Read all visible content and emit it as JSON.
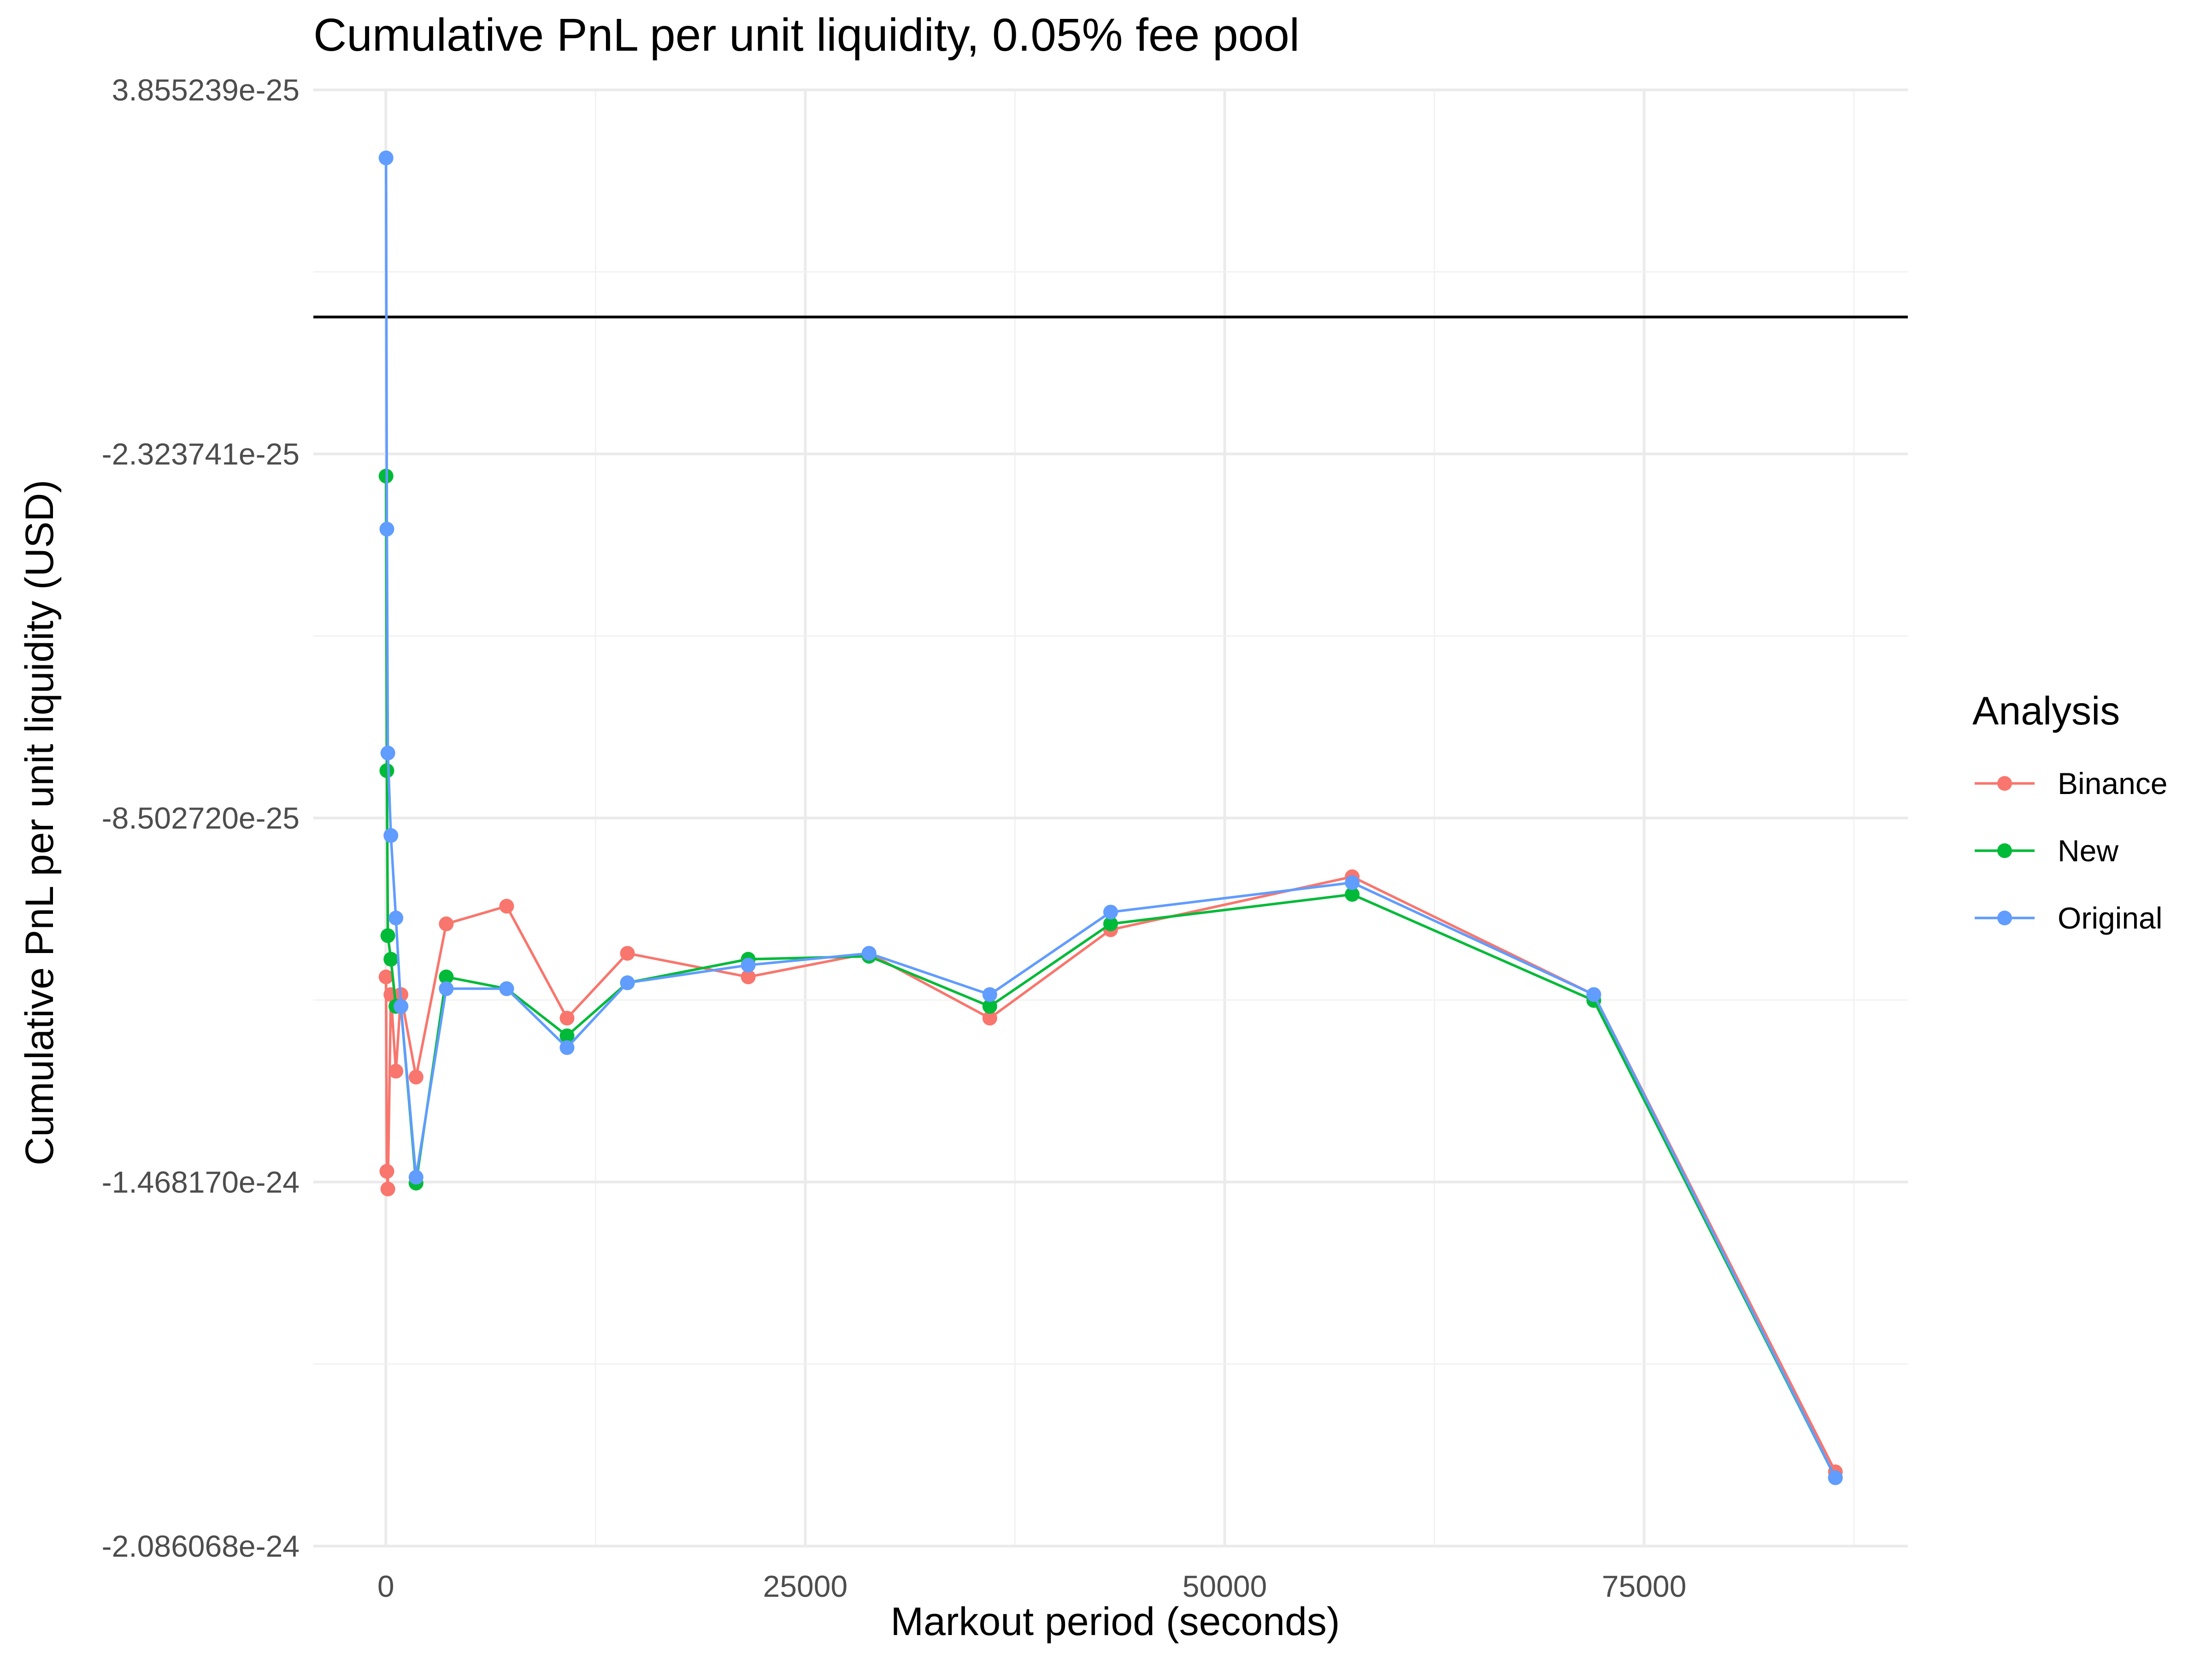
{
  "chart_data": {
    "type": "line",
    "title": "Cumulative PnL per unit liquidity, 0.05% fee pool",
    "xlabel": "Markout period (seconds)",
    "ylabel": "Cumulative PnL per unit liquidity (USD)",
    "xlim": [
      -4320,
      90720
    ],
    "ylim": [
      -2.086068e-24,
      3.855239e-25
    ],
    "x_ticks": [
      0,
      25000,
      50000,
      75000
    ],
    "x_tick_labels": [
      "0",
      "25000",
      "50000",
      "75000"
    ],
    "y_ticks": [
      3.855239e-25,
      -2.323741e-25,
      -8.50272e-25,
      -1.46817e-24,
      -2.086068e-24
    ],
    "y_tick_labels": [
      "3.855239e-25",
      "-2.323741e-25",
      "-8.502720e-25",
      "-1.468170e-24",
      "-2.086068e-24"
    ],
    "hline": 0,
    "grid": true,
    "legend": {
      "title": "Analysis",
      "position": "right"
    },
    "series": [
      {
        "name": "Binance",
        "color": "#F8766D",
        "x": [
          12,
          60,
          120,
          300,
          600,
          900,
          1800,
          3600,
          7200,
          10800,
          14400,
          21600,
          28800,
          36000,
          43200,
          57600,
          72000,
          86400
        ],
        "y": [
          -1.12e-24,
          -1.45e-24,
          -1.48e-24,
          -1.15e-24,
          -1.28e-24,
          -1.15e-24,
          -1.29e-24,
          -1.03e-24,
          -1e-24,
          -1.19e-24,
          -1.08e-24,
          -1.12e-24,
          -1.08e-24,
          -1.19e-24,
          -1.04e-24,
          -9.5e-25,
          -1.15e-24,
          -1.96e-24
        ]
      },
      {
        "name": "New",
        "color": "#00BA38",
        "x": [
          12,
          60,
          120,
          300,
          600,
          900,
          1800,
          3600,
          7200,
          10800,
          14400,
          21600,
          28800,
          36000,
          43200,
          57600,
          72000,
          86400
        ],
        "y": [
          -2.7e-25,
          -7.7e-25,
          -1.05e-24,
          -1.09e-24,
          -1.17e-24,
          -1.17e-24,
          -1.47e-24,
          -1.12e-24,
          -1.14e-24,
          -1.22e-24,
          -1.13e-24,
          -1.09e-24,
          -1.085e-24,
          -1.17e-24,
          -1.03e-24,
          -9.8e-25,
          -1.16e-24,
          -1.97e-24
        ]
      },
      {
        "name": "Original",
        "color": "#619CFF",
        "x": [
          12,
          60,
          120,
          300,
          600,
          900,
          1800,
          3600,
          7200,
          10800,
          14400,
          21600,
          28800,
          36000,
          43200,
          57600,
          72000,
          86400
        ],
        "y": [
          2.7e-25,
          -3.6e-25,
          -7.4e-25,
          -8.8e-25,
          -1.02e-24,
          -1.17e-24,
          -1.46e-24,
          -1.14e-24,
          -1.14e-24,
          -1.24e-24,
          -1.13e-24,
          -1.1e-24,
          -1.08e-24,
          -1.15e-24,
          -1.01e-24,
          -9.6e-25,
          -1.15e-24,
          -1.97e-24
        ]
      }
    ]
  }
}
